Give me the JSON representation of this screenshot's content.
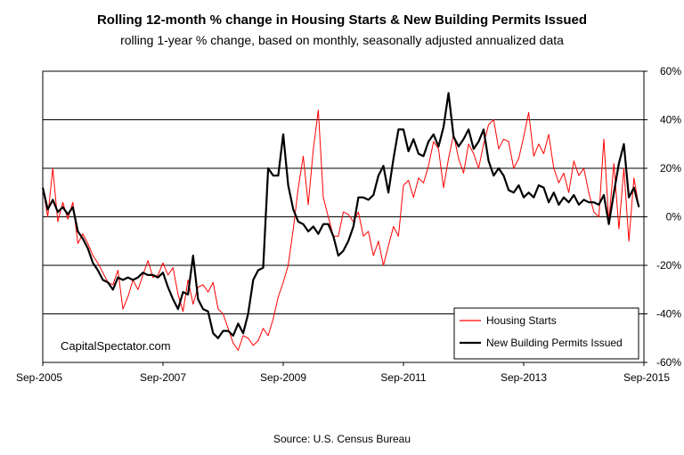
{
  "chart_data": {
    "type": "line",
    "title": "Rolling 12-month % change in Housing Starts & New Building Permits Issued",
    "subtitle": "rolling 1-year % change, based on monthly,  seasonally adjusted annualized data",
    "source": "Source: U.S. Census Bureau",
    "watermark": "CapitalSpectator.com",
    "x_tick_labels": [
      "Sep-2005",
      "Sep-2007",
      "Sep-2009",
      "Sep-2011",
      "Sep-2013",
      "Sep-2015"
    ],
    "y_tick_labels": [
      "60%",
      "40%",
      "20%",
      "0%",
      "-20%",
      "-40%",
      "-60%"
    ],
    "y_ticks": [
      60,
      40,
      20,
      0,
      -20,
      -40,
      -60
    ],
    "ylim": [
      -60,
      60
    ],
    "x_months": 120,
    "y_axis_position": "right",
    "grid": "horizontal",
    "legend_position": "bottom-right",
    "series": [
      {
        "name": "Housing Starts",
        "color": "#ff0000",
        "values": [
          12,
          0,
          20,
          -2,
          6,
          -1,
          6,
          -11,
          -7,
          -11,
          -16,
          -19,
          -23,
          -27,
          -28,
          -22,
          -38,
          -33,
          -26,
          -30,
          -24,
          -18,
          -25,
          -24,
          -19,
          -24,
          -21,
          -32,
          -39,
          -26,
          -36,
          -29,
          -28,
          -31,
          -27,
          -38,
          -40,
          -46,
          -52,
          -55,
          -49,
          -50,
          -53,
          -51,
          -46,
          -49,
          -42,
          -33,
          -27,
          -20,
          -5,
          12,
          25,
          5,
          28,
          44,
          8,
          0,
          -8,
          -8,
          2,
          1,
          -2,
          2,
          -8,
          -6,
          -16,
          -10,
          -20,
          -12,
          -4,
          -8,
          13,
          15,
          8,
          16,
          14,
          21,
          31,
          28,
          12,
          24,
          34,
          24,
          18,
          30,
          26,
          20,
          30,
          38,
          40,
          28,
          32,
          31,
          20,
          24,
          33,
          43,
          25,
          30,
          26,
          34,
          20,
          14,
          18,
          10,
          23,
          17,
          20,
          10,
          2,
          0,
          32,
          -2,
          22,
          -5,
          20,
          -10,
          16,
          4
        ],
        "values_note": "sample"
      },
      {
        "name": "New Building Permits Issued",
        "color": "#000000",
        "values": [
          12,
          3,
          7,
          2,
          4,
          1,
          4,
          -6,
          -9,
          -13,
          -19,
          -22,
          -26,
          -27,
          -30,
          -25,
          -26,
          -25,
          -26,
          -25,
          -23,
          -24,
          -24,
          -25,
          -23,
          -29,
          -34,
          -38,
          -31,
          -32,
          -16,
          -34,
          -38,
          -39,
          -48,
          -50,
          -47,
          -47,
          -49,
          -44,
          -48,
          -40,
          -26,
          -22,
          -21,
          20,
          17,
          17,
          34,
          13,
          3,
          -2,
          -3,
          -6,
          -4,
          -7,
          -3,
          -3,
          -8,
          -16,
          -14,
          -10,
          -4,
          8,
          8,
          7,
          9,
          17,
          21,
          10,
          24,
          36,
          36,
          27,
          32,
          26,
          25,
          31,
          34,
          29,
          37,
          51,
          33,
          29,
          32,
          36,
          28,
          31,
          36,
          23,
          17,
          20,
          17,
          11,
          10,
          13,
          8,
          10,
          8,
          13,
          12,
          6,
          10,
          5,
          8,
          6,
          9,
          5,
          7,
          6,
          6,
          5,
          9,
          -3,
          10,
          22,
          30,
          8,
          12,
          4
        ],
        "values_note": "sample"
      }
    ]
  }
}
